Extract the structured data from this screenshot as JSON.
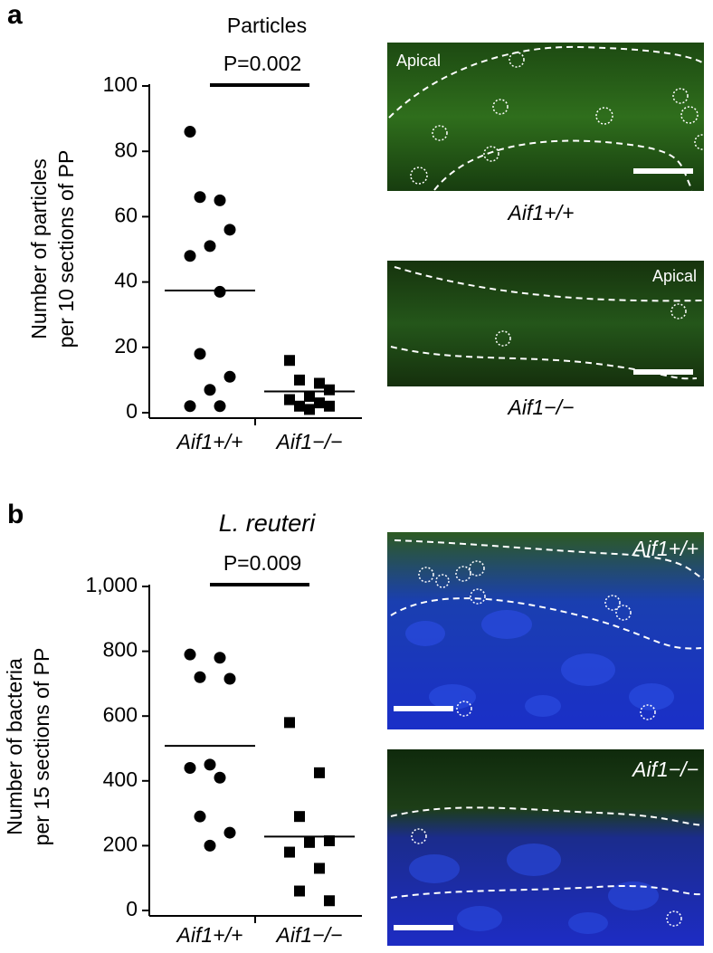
{
  "chart_data": [
    {
      "type": "scatter",
      "panel": "a",
      "title": "Particles",
      "annotation": "P=0.002",
      "ylabel": [
        "Number of particles",
        "per 10 sections of PP"
      ],
      "categories": [
        "Aif1+/+",
        "Aif1−/−"
      ],
      "markers": [
        "circle",
        "square"
      ],
      "color": "#000000",
      "values": [
        [
          86,
          65,
          66,
          56,
          51,
          48,
          37,
          18,
          11,
          7,
          2,
          2
        ],
        [
          16,
          9,
          10,
          7,
          5,
          4,
          3,
          2,
          2,
          1,
          4
        ]
      ],
      "means": [
        37.4,
        6.5
      ],
      "ylim": [
        0,
        100
      ],
      "yticks": [
        0,
        20,
        40,
        60,
        80,
        100
      ]
    },
    {
      "type": "scatter",
      "panel": "b",
      "title": "L. reuteri",
      "annotation": "P=0.009",
      "ylabel": [
        "Number of bacteria",
        "per 15 sections of PP"
      ],
      "categories": [
        "Aif1+/+",
        "Aif1−/−"
      ],
      "markers": [
        "circle",
        "square"
      ],
      "color": "#000000",
      "values": [
        [
          790,
          780,
          720,
          715,
          450,
          440,
          410,
          290,
          240,
          200
        ],
        [
          580,
          425,
          290,
          215,
          210,
          180,
          130,
          60,
          30
        ]
      ],
      "means": [
        508,
        228
      ],
      "ylim": [
        0,
        1000
      ],
      "yticks": [
        0,
        200,
        400,
        600,
        800,
        {
          "value": 1000,
          "label": "1,000"
        }
      ]
    }
  ],
  "images": [
    {
      "label": "Apical",
      "caption": "Aif1+/+"
    },
    {
      "label": "Apical",
      "caption": "Aif1−/−"
    },
    {
      "label": "Aif1+/+"
    },
    {
      "label": "Aif1−/−"
    }
  ]
}
